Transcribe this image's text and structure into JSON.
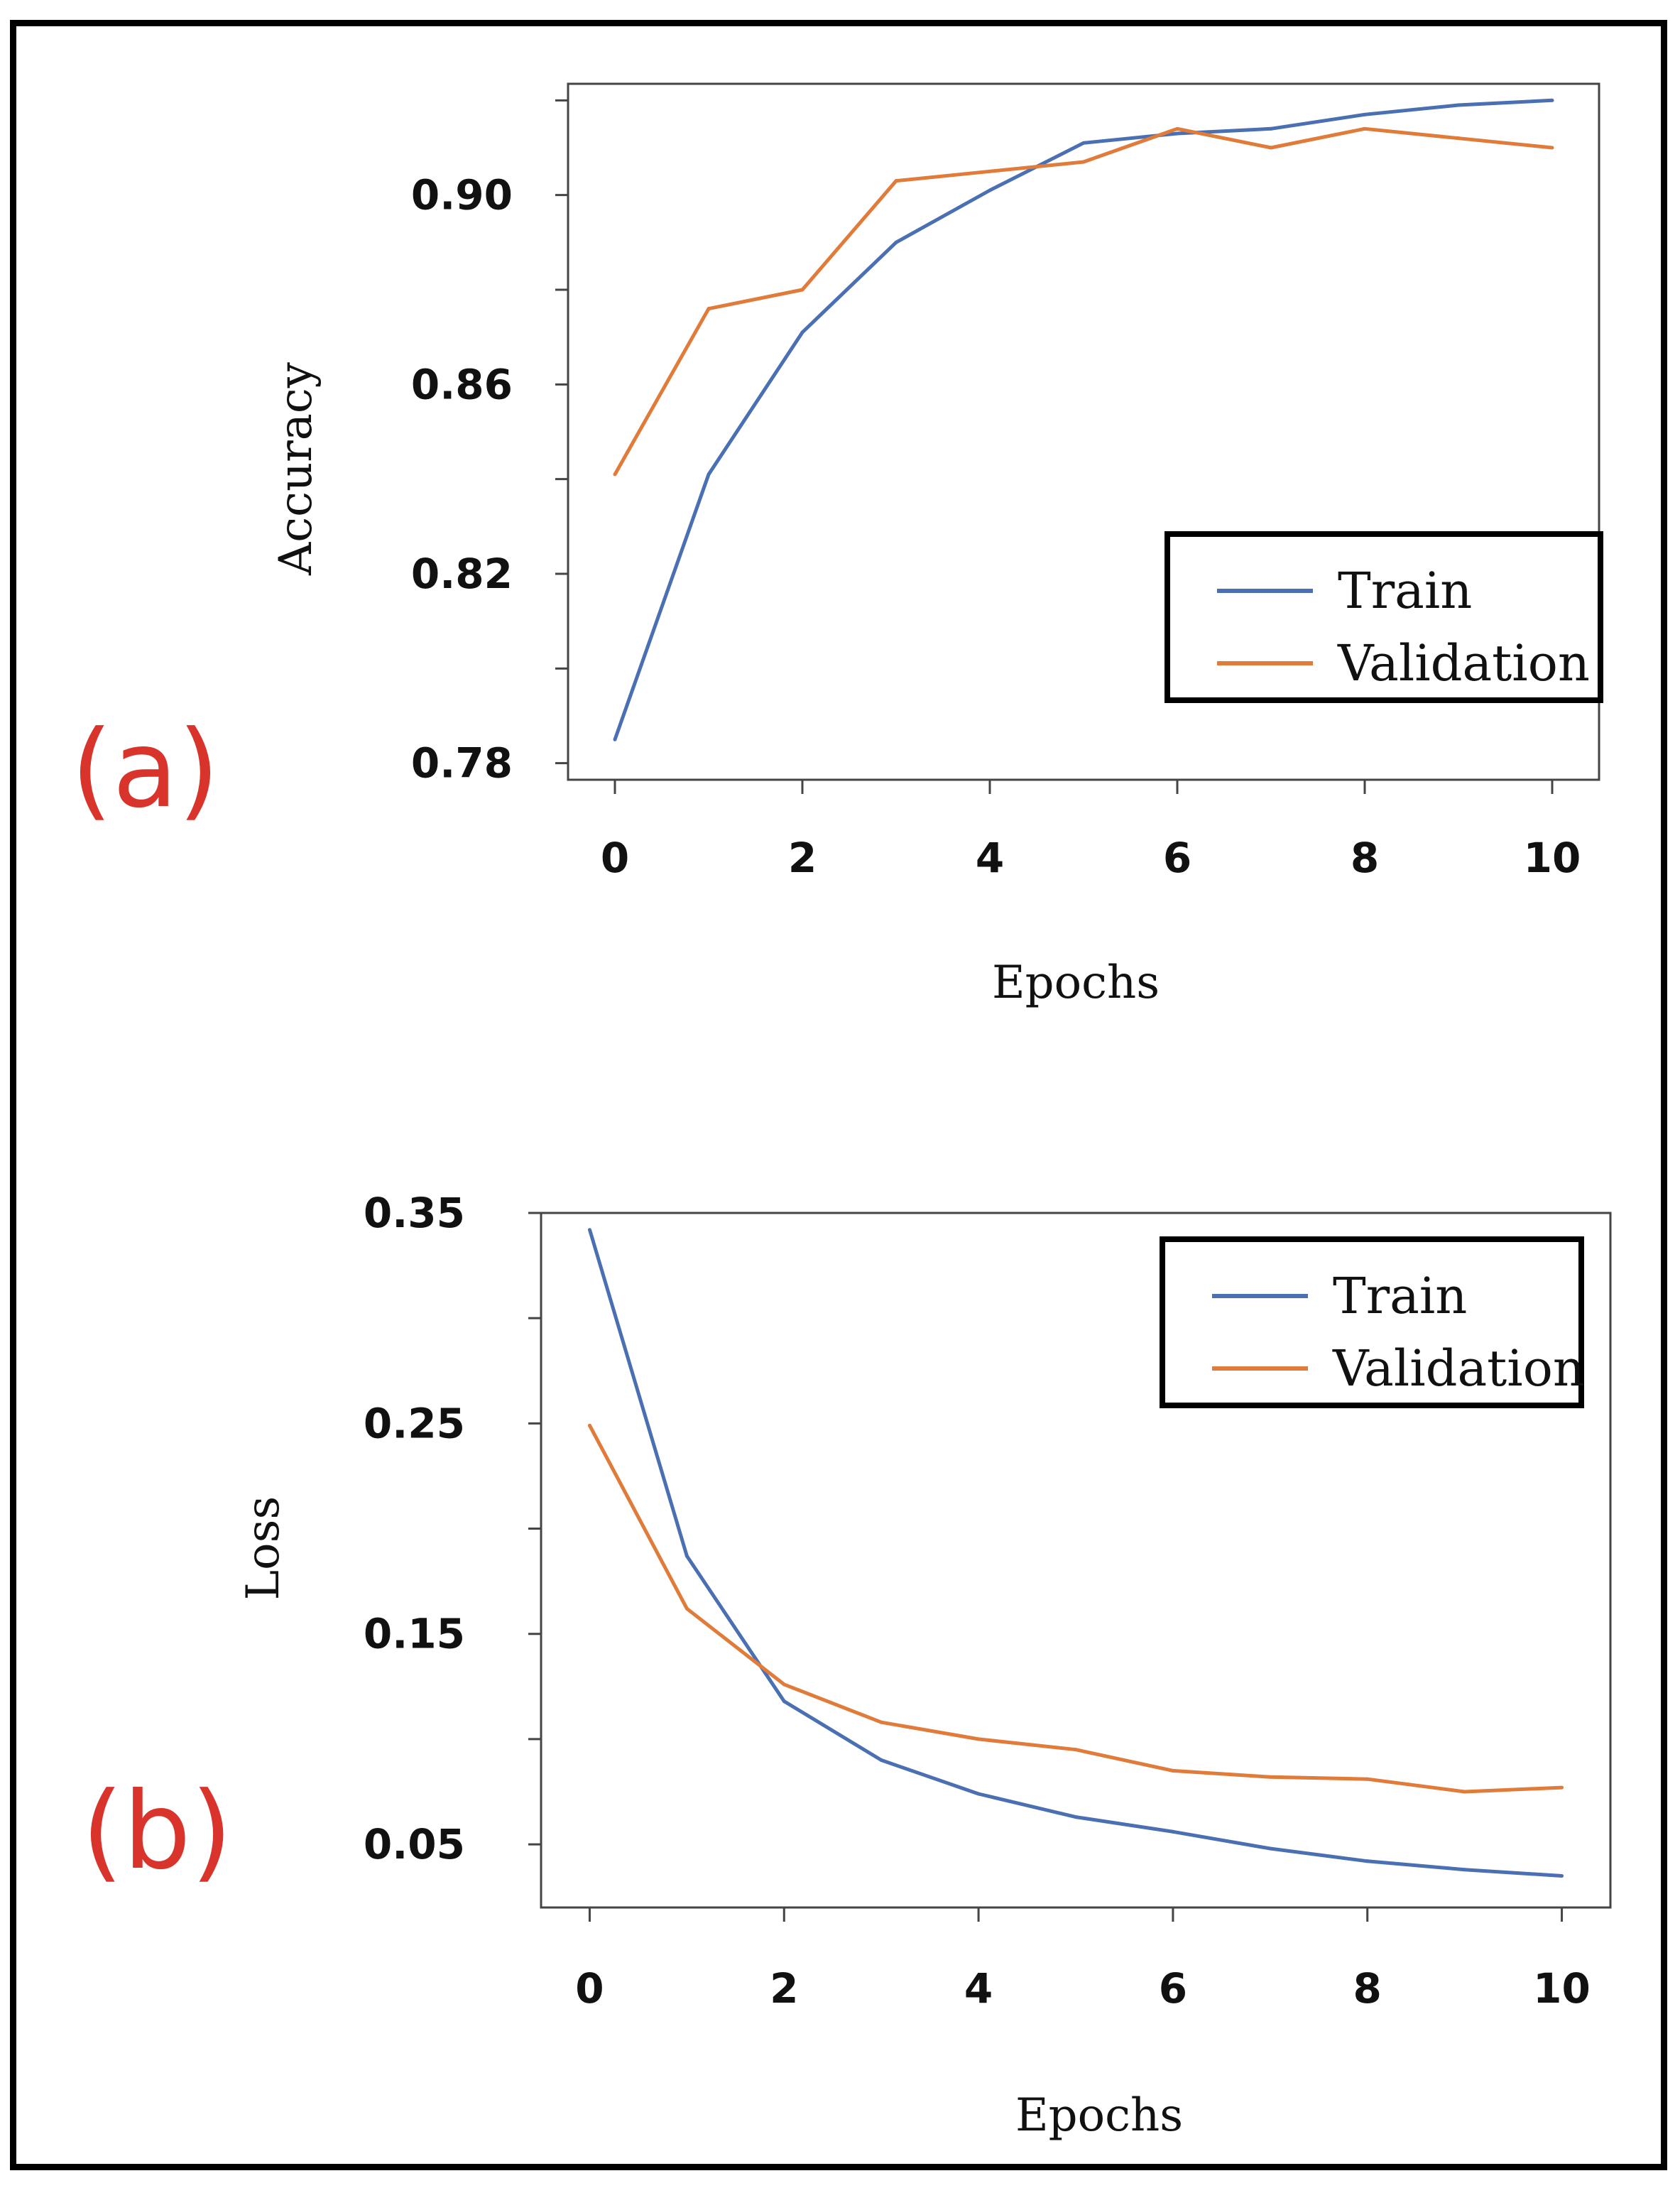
{
  "colors": {
    "train": "#4a6fb3",
    "validation": "#e07b3a",
    "panel_label": "#d9342b"
  },
  "chart_data": [
    {
      "type": "line",
      "panel": "(a)",
      "title": "",
      "xlabel": "Epochs",
      "ylabel": "Accuracy",
      "xlim": [
        -0.5,
        10.5
      ],
      "ylim": [
        0.7765,
        0.9235
      ],
      "xticks": [
        0,
        2,
        4,
        6,
        8,
        10
      ],
      "xtick_labels": [
        "0",
        "2",
        "4",
        "6",
        "8",
        "10"
      ],
      "yticks": [
        0.78,
        0.82,
        0.86,
        0.9
      ],
      "ytick_labels": [
        "0.78",
        "0.82",
        "0.86",
        "0.90"
      ],
      "minor_yticks": [
        0.8,
        0.84,
        0.88,
        0.92
      ],
      "legend_position": "lower-right",
      "x": [
        0,
        1,
        2,
        3,
        4,
        5,
        6,
        7,
        8,
        9,
        10
      ],
      "series": [
        {
          "name": "Train",
          "color_key": "train",
          "values": [
            0.785,
            0.841,
            0.871,
            0.89,
            0.901,
            0.911,
            0.913,
            0.914,
            0.917,
            0.919,
            0.92
          ]
        },
        {
          "name": "Validation",
          "color_key": "validation",
          "values": [
            0.841,
            0.876,
            0.88,
            0.903,
            0.905,
            0.907,
            0.914,
            0.91,
            0.914,
            0.912,
            0.91
          ]
        }
      ]
    },
    {
      "type": "line",
      "panel": "(b)",
      "title": "",
      "xlabel": "Epochs",
      "ylabel": "Loss",
      "xlim": [
        -0.5,
        10.5
      ],
      "ylim": [
        0.02,
        0.35
      ],
      "xticks": [
        0,
        2,
        4,
        6,
        8,
        10
      ],
      "xtick_labels": [
        "0",
        "2",
        "4",
        "6",
        "8",
        "10"
      ],
      "yticks": [
        0.05,
        0.15,
        0.25,
        0.35
      ],
      "ytick_labels": [
        "0.05",
        "0.15",
        "0.25",
        "0.35"
      ],
      "minor_yticks": [
        0.1,
        0.2,
        0.3
      ],
      "legend_position": "upper-right",
      "x": [
        0,
        1,
        2,
        3,
        4,
        5,
        6,
        7,
        8,
        9,
        10
      ],
      "series": [
        {
          "name": "Train",
          "color_key": "train",
          "values": [
            0.342,
            0.187,
            0.118,
            0.09,
            0.074,
            0.063,
            0.056,
            0.048,
            0.042,
            0.038,
            0.035
          ]
        },
        {
          "name": "Validation",
          "color_key": "validation",
          "values": [
            0.249,
            0.162,
            0.126,
            0.108,
            0.1,
            0.095,
            0.085,
            0.082,
            0.081,
            0.075,
            0.077
          ]
        }
      ]
    }
  ]
}
